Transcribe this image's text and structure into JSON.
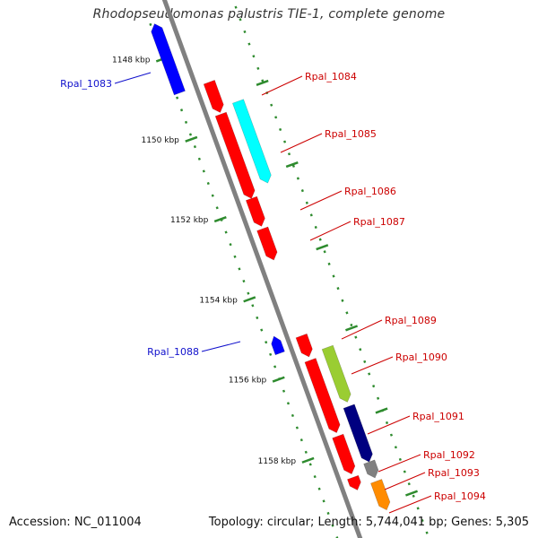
{
  "title": "Rhodopseudomonas palustris TIE-1, complete genome",
  "footer": {
    "accession": "Accession: NC_011004",
    "topology": "Topology: circular; Length: 5,744,041 bp; Genes: 5,305"
  },
  "colors": {
    "backbone": "#808080",
    "tick": "#2e8b2e",
    "forward_label": "#cc0000",
    "reverse_label": "#1010cc"
  },
  "kbp_labels": [
    "1148 kbp",
    "1150 kbp",
    "1152 kbp",
    "1154 kbp",
    "1156 kbp",
    "1158 kbp"
  ],
  "genes": [
    {
      "id": "Rpal_1083",
      "strand": "reverse",
      "color": "#0000ff"
    },
    {
      "id": "Rpal_1084",
      "strand": "forward",
      "color": "#ff0000"
    },
    {
      "id": "Rpal_1085",
      "strand": "forward",
      "color": "#00ffff"
    },
    {
      "id": "Rpal_1086",
      "strand": "forward",
      "color": "#ff0000"
    },
    {
      "id": "Rpal_1087",
      "strand": "forward",
      "color": "#ff0000"
    },
    {
      "id": "Rpal_1088",
      "strand": "reverse",
      "color": "#0000ff"
    },
    {
      "id": "Rpal_1089",
      "strand": "forward",
      "color": "#ff0000"
    },
    {
      "id": "Rpal_1090",
      "strand": "forward",
      "color": "#9acd32"
    },
    {
      "id": "Rpal_1091",
      "strand": "forward",
      "color": "#000080"
    },
    {
      "id": "Rpal_1092",
      "strand": "forward",
      "color": "#ff0000"
    },
    {
      "id": "Rpal_1093",
      "strand": "forward",
      "color": "#808080"
    },
    {
      "id": "Rpal_1094",
      "strand": "forward",
      "color": "#ff8c00"
    }
  ]
}
